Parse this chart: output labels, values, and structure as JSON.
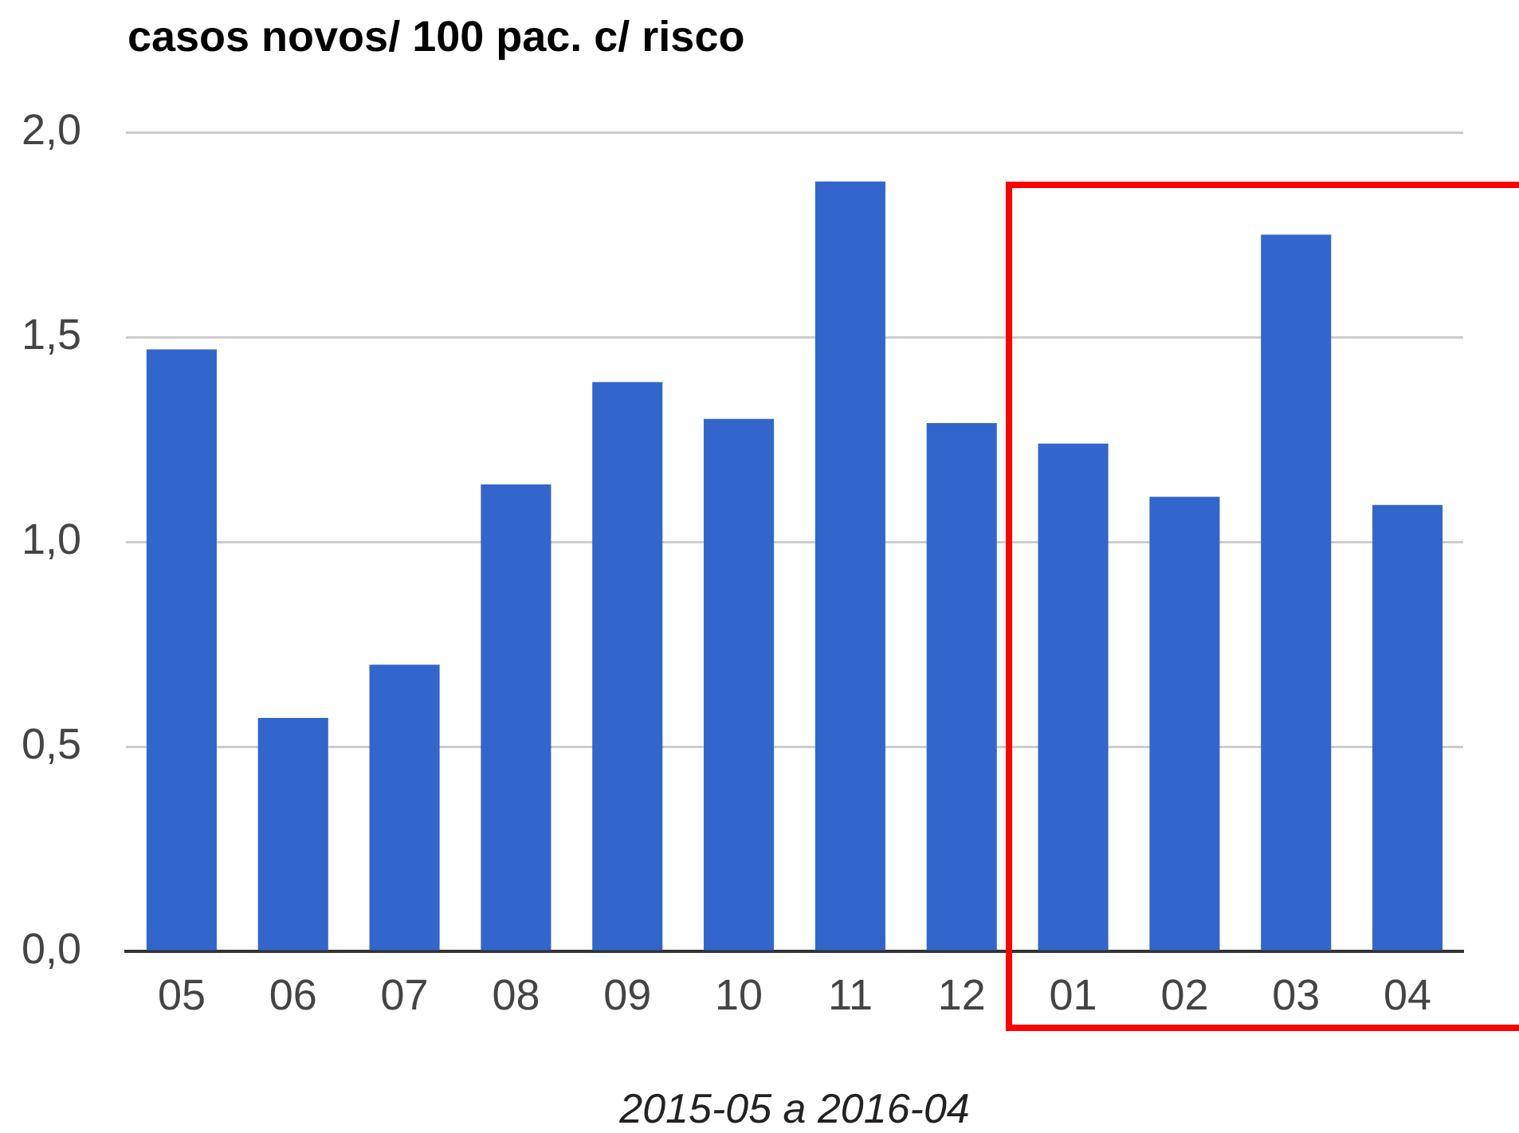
{
  "chart_data": {
    "type": "bar",
    "title": "casos novos/ 100 pac. c/ risco",
    "xlabel": "2015-05 a 2016-04",
    "categories": [
      "05",
      "06",
      "07",
      "08",
      "09",
      "10",
      "11",
      "12",
      "01",
      "02",
      "03",
      "04"
    ],
    "values": [
      1.47,
      0.57,
      0.7,
      1.14,
      1.39,
      1.3,
      1.88,
      1.29,
      1.24,
      1.11,
      1.75,
      1.09
    ],
    "color": "#3366cc",
    "ylim": [
      0,
      2
    ],
    "yticks": [
      {
        "value": 0,
        "label": "0,0"
      },
      {
        "value": 0.5,
        "label": "0,5"
      },
      {
        "value": 1,
        "label": "1,0"
      },
      {
        "value": 1.5,
        "label": "1,5"
      },
      {
        "value": 2,
        "label": "2,0"
      }
    ],
    "grid": "y",
    "legend": false
  }
}
